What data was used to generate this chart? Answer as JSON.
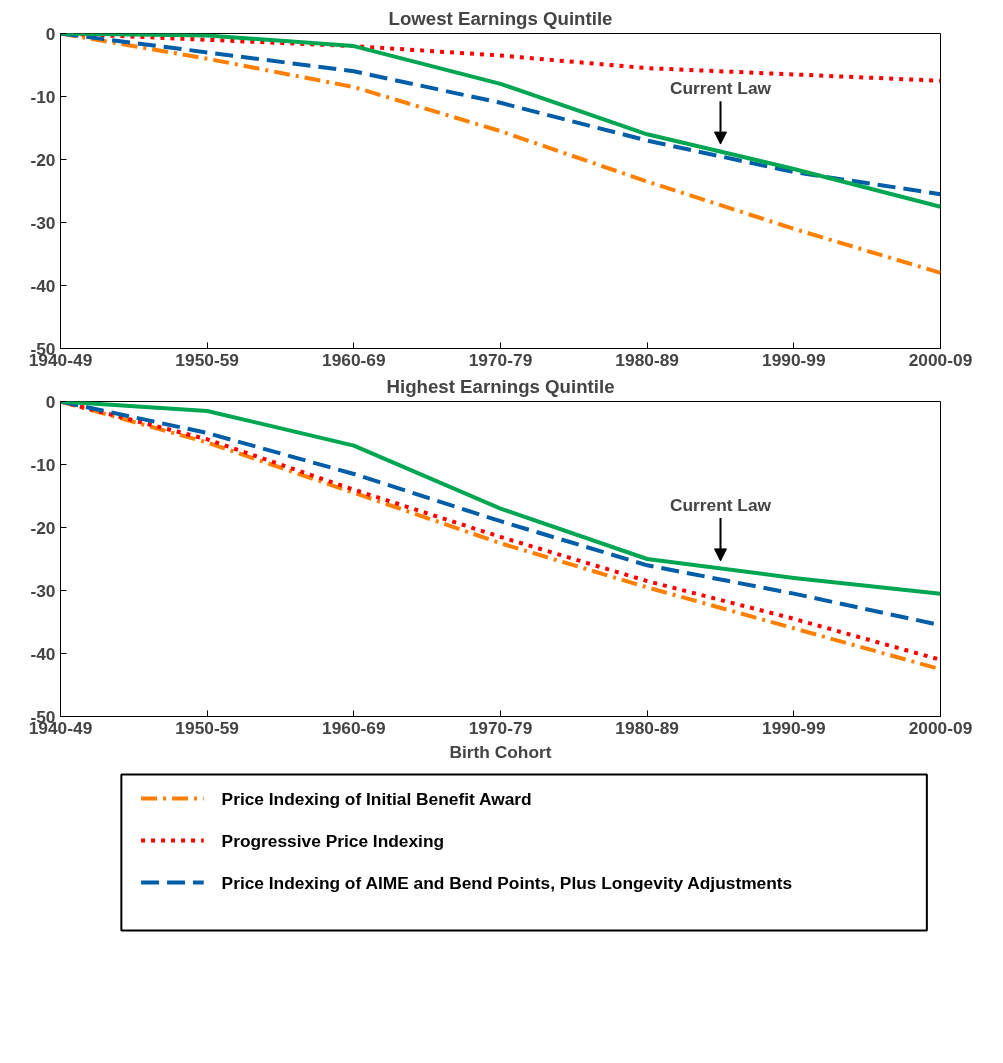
{
  "chart_data": [
    {
      "type": "line",
      "title": "Lowest Earnings Quintile",
      "categories": [
        "1940-49",
        "1950-59",
        "1960-69",
        "1970-79",
        "1980-89",
        "1990-99",
        "2000-09"
      ],
      "ylim": [
        -50,
        0
      ],
      "yticks": [
        0,
        -10,
        -20,
        -30,
        -40,
        -50
      ],
      "grid": false,
      "legend": false,
      "annotations": [
        "Current Law"
      ],
      "series": [
        {
          "color": "#ff7f00",
          "line_style": "dashdot",
          "values": [
            0,
            -4,
            -8.5,
            -15.5,
            -23.5,
            -31,
            -38
          ]
        },
        {
          "color": "#ff0000",
          "line_style": "dotted",
          "values": [
            0,
            -1,
            -2,
            -3.5,
            -5.5,
            -6.5,
            -7.5
          ]
        },
        {
          "color": "#005ea8",
          "line_style": "dashed",
          "values": [
            0,
            -3,
            -6,
            -11,
            -17,
            -22,
            -25.5
          ]
        },
        {
          "color": "#00a651",
          "line_style": "solid",
          "values": [
            0,
            -0.3,
            -2,
            -8,
            -16,
            -21.5,
            -27.5
          ]
        }
      ]
    },
    {
      "type": "line",
      "title": "Highest Earnings Quintile",
      "xlabel": "Birth Cohort",
      "categories": [
        "1940-49",
        "1950-59",
        "1960-69",
        "1970-79",
        "1980-89",
        "1990-99",
        "2000-09"
      ],
      "ylim": [
        -50,
        0
      ],
      "yticks": [
        0,
        -10,
        -20,
        -30,
        -40,
        -50
      ],
      "grid": false,
      "legend": "bottom",
      "annotations": [
        "Current Law"
      ],
      "series": [
        {
          "name": "Price Indexing of Initial Benefit Award",
          "color": "#ff7f00",
          "line_style": "dashdot",
          "values": [
            0,
            -6.5,
            -14.5,
            -22.5,
            -29.5,
            -36,
            -42.5
          ]
        },
        {
          "name": "Progressive Price Indexing",
          "color": "#ff0000",
          "line_style": "dotted",
          "values": [
            0,
            -6,
            -14,
            -21.5,
            -28.5,
            -34.5,
            -41
          ]
        },
        {
          "name": "Price Indexing of AIME and Bend Points, Plus Longevity Adjustments",
          "color": "#005ea8",
          "line_style": "dashed",
          "values": [
            0,
            -5,
            -11.5,
            -19,
            -26,
            -30.5,
            -35.5
          ]
        },
        {
          "color": "#00a651",
          "line_style": "solid",
          "values": [
            0,
            -1.5,
            -7,
            -17,
            -25,
            -28,
            -30.5
          ]
        }
      ]
    }
  ]
}
